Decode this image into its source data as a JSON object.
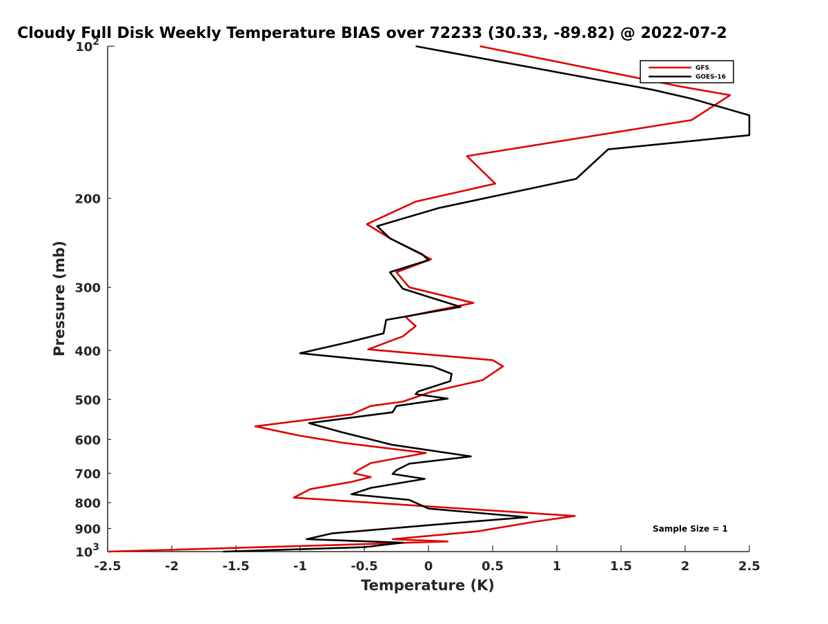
{
  "chart_data": {
    "type": "line",
    "title": "Cloudy Full Disk Weekly Temperature BIAS over 72233 (30.33, -89.82) @ 2022-07-2",
    "xlabel": "Temperature (K)",
    "ylabel": "Pressure (mb)",
    "xlim": [
      -2.5,
      2.5
    ],
    "ylim": [
      100,
      1000
    ],
    "y_scale": "log",
    "y_reversed": true,
    "grid": false,
    "legend_position": "top-right",
    "x_ticks": [
      -2.5,
      -2,
      -1.5,
      -1,
      -0.5,
      0,
      0.5,
      1,
      1.5,
      2,
      2.5
    ],
    "x_tick_labels": [
      "-2.5",
      "-2",
      "-1.5",
      "-1",
      "-0.5",
      "0",
      "0.5",
      "1",
      "1.5",
      "2",
      "2.5"
    ],
    "y_ticks": [
      200,
      300,
      400,
      500,
      600,
      700,
      800,
      900
    ],
    "y_tick_labels": [
      "200",
      "300",
      "400",
      "500",
      "600",
      "700",
      "800",
      "900"
    ],
    "y_decade_labels": [
      {
        "value": 100,
        "base": "10",
        "exp": "2"
      },
      {
        "value": 1000,
        "base": "10",
        "exp": "3"
      }
    ],
    "annotation": "Sample Size = 1",
    "series": [
      {
        "name": "GFS",
        "color": "#e00000",
        "points": [
          [
            0.4,
            100
          ],
          [
            1.95,
            120
          ],
          [
            2.35,
            125
          ],
          [
            2.05,
            140
          ],
          [
            0.3,
            165
          ],
          [
            0.52,
            187
          ],
          [
            -0.1,
            203
          ],
          [
            -0.48,
            225
          ],
          [
            -0.3,
            240
          ],
          [
            0.02,
            264
          ],
          [
            -0.25,
            280
          ],
          [
            -0.15,
            300
          ],
          [
            0.35,
            322
          ],
          [
            -0.18,
            343
          ],
          [
            -0.1,
            358
          ],
          [
            -0.2,
            375
          ],
          [
            -0.47,
            398
          ],
          [
            0.5,
            418
          ],
          [
            0.58,
            430
          ],
          [
            0.42,
            458
          ],
          [
            0.02,
            483
          ],
          [
            -0.05,
            490
          ],
          [
            -0.2,
            505
          ],
          [
            -0.45,
            515
          ],
          [
            -0.6,
            535
          ],
          [
            -1.35,
            565
          ],
          [
            -1.0,
            590
          ],
          [
            -0.65,
            610
          ],
          [
            -0.02,
            638
          ],
          [
            -0.45,
            668
          ],
          [
            -0.55,
            690
          ],
          [
            -0.58,
            700
          ],
          [
            -0.45,
            712
          ],
          [
            -0.6,
            728
          ],
          [
            -0.92,
            752
          ],
          [
            -1.05,
            782
          ],
          [
            1.14,
            850
          ],
          [
            0.8,
            875
          ],
          [
            0.38,
            912
          ],
          [
            -0.28,
            945
          ],
          [
            0.15,
            955
          ],
          [
            -0.7,
            970
          ],
          [
            -2.5,
            1000
          ]
        ]
      },
      {
        "name": "GOES-16",
        "color": "#000000",
        "points": [
          [
            -0.1,
            100
          ],
          [
            1.75,
            122
          ],
          [
            2.05,
            127
          ],
          [
            2.5,
            137
          ],
          [
            2.5,
            150
          ],
          [
            1.4,
            160
          ],
          [
            1.15,
            183
          ],
          [
            0.08,
            209
          ],
          [
            -0.4,
            227
          ],
          [
            -0.3,
            240
          ],
          [
            -0.05,
            258
          ],
          [
            0.0,
            265
          ],
          [
            -0.3,
            280
          ],
          [
            -0.2,
            302
          ],
          [
            0.25,
            328
          ],
          [
            -0.33,
            348
          ],
          [
            -0.35,
            370
          ],
          [
            -0.62,
            385
          ],
          [
            -1.0,
            405
          ],
          [
            0.03,
            430
          ],
          [
            0.18,
            445
          ],
          [
            0.17,
            460
          ],
          [
            -0.08,
            482
          ],
          [
            -0.1,
            488
          ],
          [
            0.15,
            498
          ],
          [
            -0.25,
            515
          ],
          [
            -0.28,
            530
          ],
          [
            -0.93,
            557
          ],
          [
            -0.68,
            580
          ],
          [
            -0.28,
            615
          ],
          [
            0.33,
            648
          ],
          [
            -0.15,
            670
          ],
          [
            -0.25,
            690
          ],
          [
            -0.28,
            702
          ],
          [
            -0.03,
            718
          ],
          [
            -0.45,
            748
          ],
          [
            -0.6,
            770
          ],
          [
            -0.15,
            790
          ],
          [
            0.0,
            822
          ],
          [
            0.77,
            855
          ],
          [
            0.2,
            878
          ],
          [
            -0.75,
            920
          ],
          [
            -0.95,
            945
          ],
          [
            -0.2,
            960
          ],
          [
            -0.5,
            980
          ],
          [
            -1.6,
            1000
          ]
        ]
      }
    ]
  }
}
